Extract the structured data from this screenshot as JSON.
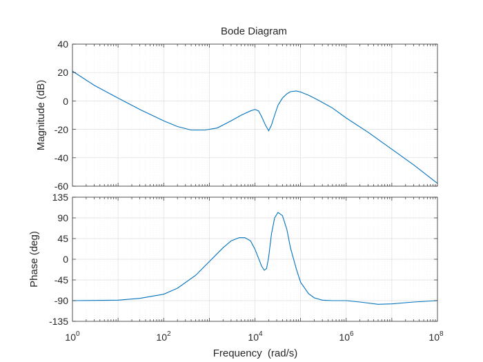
{
  "chart_data": {
    "type": "line",
    "title": "Bode Diagram",
    "xlabel": "Frequency  (rad/s)",
    "xscale": "log",
    "xlim": [
      1,
      100000000
    ],
    "x_ticks": [
      {
        "base": "10",
        "exp": "0"
      },
      {
        "base": "10",
        "exp": "2"
      },
      {
        "base": "10",
        "exp": "4"
      },
      {
        "base": "10",
        "exp": "6"
      },
      {
        "base": "10",
        "exp": "8"
      }
    ],
    "grid": true,
    "line_color": "#0072bd",
    "panels": [
      {
        "name": "magnitude",
        "ylabel": "Magnitude (dB)",
        "ylim": [
          -60,
          40
        ],
        "yticks": [
          "40",
          "20",
          "0",
          "-20",
          "-40",
          "-60"
        ],
        "series": [
          {
            "name": "Magnitude",
            "x": [
              1,
              3,
              10,
              30,
              100,
              200,
              400,
              800,
              1500,
              3000,
              5000,
              8000,
              10000,
              12000,
              14000,
              17000,
              20000,
              23000,
              27000,
              32000,
              40000,
              50000,
              60000,
              80000,
              100000,
              150000,
              200000,
              300000,
              500000,
              1000000,
              3000000,
              10000000,
              30000000,
              100000000
            ],
            "y": [
              21,
              11,
              2,
              -6,
              -14,
              -18,
              -20.5,
              -20.5,
              -19,
              -14,
              -10,
              -7,
              -6,
              -7,
              -11,
              -17,
              -21,
              -17,
              -10,
              -3,
              2,
              5,
              6.5,
              7,
              6.3,
              4,
              2,
              -1,
              -5,
              -12,
              -22,
              -34,
              -45,
              -58
            ]
          }
        ]
      },
      {
        "name": "phase",
        "ylabel": "Phase (deg)",
        "ylim": [
          -135,
          135
        ],
        "yticks": [
          "135",
          "90",
          "45",
          "0",
          "-45",
          "-90",
          "-135"
        ],
        "series": [
          {
            "name": "Phase",
            "x": [
              1,
              10,
              30,
              100,
              200,
              500,
              1000,
              2000,
              3000,
              4500,
              6000,
              8000,
              10000,
              12000,
              14000,
              16000,
              18000,
              20000,
              23000,
              27000,
              32000,
              40000,
              50000,
              60000,
              80000,
              100000,
              150000,
              200000,
              300000,
              500000,
              1000000,
              2000000,
              5000000,
              10000000,
              30000000,
              100000000
            ],
            "y": [
              -90,
              -89,
              -85,
              -76,
              -63,
              -35,
              -5,
              25,
              40,
              47,
              47,
              40,
              22,
              2,
              -15,
              -24,
              -20,
              5,
              55,
              90,
              102,
              95,
              65,
              25,
              -20,
              -50,
              -75,
              -84,
              -89,
              -90,
              -90,
              -93,
              -98,
              -97,
              -93,
              -90
            ]
          }
        ]
      }
    ]
  }
}
